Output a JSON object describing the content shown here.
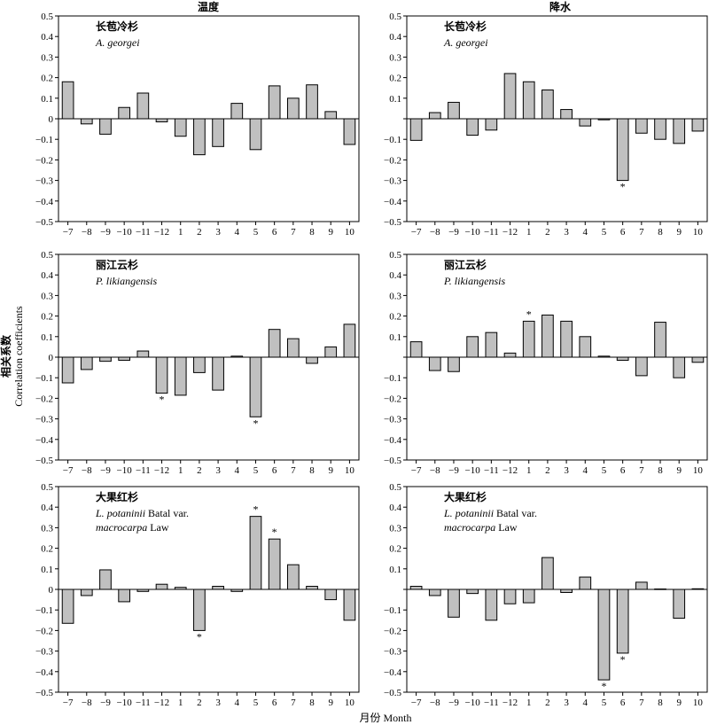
{
  "columns": [
    "温度",
    "降水"
  ],
  "axis": {
    "xlabel": "月份 Month",
    "ylabel_cn": "相关系数",
    "ylabel_en": "Correlation coefficients"
  },
  "chart_data": [
    {
      "type": "bar",
      "row": 0,
      "col": 0,
      "species_cn": "长苞冷杉",
      "species_lat": [
        "A. georgei"
      ],
      "categories": [
        "−7",
        "−8",
        "−9",
        "−10",
        "−11",
        "−12",
        "1",
        "2",
        "3",
        "4",
        "5",
        "6",
        "7",
        "8",
        "9",
        "10"
      ],
      "values": [
        0.18,
        -0.025,
        -0.075,
        0.055,
        0.125,
        -0.015,
        -0.085,
        -0.175,
        -0.135,
        0.075,
        -0.15,
        0.16,
        0.1,
        0.165,
        0.035,
        -0.125
      ],
      "significant": [],
      "ylim": [
        -0.5,
        0.5
      ],
      "yticks": [
        "−0.5",
        "−0.4",
        "−0.3",
        "−0.2",
        "−0.1",
        "0",
        "0.1",
        "0.2",
        "0.3",
        "0.4",
        "0.5"
      ]
    },
    {
      "type": "bar",
      "row": 0,
      "col": 1,
      "species_cn": "长苞冷杉",
      "species_lat": [
        "A. georgei"
      ],
      "categories": [
        "−7",
        "−8",
        "−9",
        "−10",
        "−11",
        "−12",
        "1",
        "2",
        "3",
        "4",
        "5",
        "6",
        "7",
        "8",
        "9",
        "10"
      ],
      "values": [
        -0.105,
        0.03,
        0.08,
        -0.08,
        -0.055,
        0.22,
        0.18,
        0.14,
        0.045,
        -0.035,
        -0.005,
        -0.3,
        -0.07,
        -0.1,
        -0.12,
        -0.06
      ],
      "significant": [
        11
      ],
      "ylim": [
        -0.5,
        0.5
      ],
      "yticks": [
        "−0.5",
        "−0.4",
        "−0.3",
        "−0.2",
        "−0.1",
        "",
        "0.1",
        "0.2",
        "0.3",
        "0.4",
        "0.5"
      ]
    },
    {
      "type": "bar",
      "row": 1,
      "col": 0,
      "species_cn": "丽江云杉",
      "species_lat": [
        "P. likiangensis"
      ],
      "categories": [
        "−7",
        "−8",
        "−9",
        "−10",
        "−11",
        "−12",
        "1",
        "2",
        "3",
        "4",
        "5",
        "6",
        "7",
        "8",
        "9",
        "10"
      ],
      "values": [
        -0.125,
        -0.06,
        -0.02,
        -0.015,
        0.03,
        -0.175,
        -0.185,
        -0.075,
        -0.16,
        0.005,
        -0.29,
        0.135,
        0.09,
        -0.03,
        0.05,
        0.16
      ],
      "significant": [
        5,
        10
      ],
      "ylim": [
        -0.5,
        0.5
      ],
      "yticks": [
        "−0.5",
        "−0.4",
        "−0.3",
        "−0.2",
        "−0.1",
        "0",
        "0.1",
        "0.2",
        "0.3",
        "0.4",
        "0.5"
      ]
    },
    {
      "type": "bar",
      "row": 1,
      "col": 1,
      "species_cn": "丽江云杉",
      "species_lat": [
        "P. likiangensis"
      ],
      "categories": [
        "−7",
        "−8",
        "−9",
        "−10",
        "−11",
        "−12",
        "1",
        "2",
        "3",
        "4",
        "5",
        "6",
        "7",
        "8",
        "9",
        "10"
      ],
      "values": [
        0.075,
        -0.065,
        -0.07,
        0.1,
        0.12,
        0.02,
        0.175,
        0.205,
        0.175,
        0.1,
        0.005,
        -0.015,
        -0.09,
        0.17,
        -0.1,
        -0.025
      ],
      "significant": [
        6
      ],
      "ylim": [
        -0.5,
        0.5
      ],
      "yticks": [
        "−0.5",
        "−0.4",
        "−0.3",
        "−0.2",
        "−0.1",
        "",
        "0.1",
        "0.2",
        "0.3",
        "0.4",
        "0.5"
      ]
    },
    {
      "type": "bar",
      "row": 2,
      "col": 0,
      "species_cn": "大果红杉",
      "species_lat": [
        "L. potaninii Batal var.",
        "macrocarpa Law"
      ],
      "categories": [
        "−7",
        "−8",
        "−9",
        "−10",
        "−11",
        "−12",
        "1",
        "2",
        "3",
        "4",
        "5",
        "6",
        "7",
        "8",
        "9",
        "10"
      ],
      "values": [
        -0.165,
        -0.03,
        0.095,
        -0.06,
        -0.01,
        0.025,
        0.01,
        -0.2,
        0.015,
        -0.01,
        0.355,
        0.245,
        0.12,
        0.015,
        -0.05,
        -0.15
      ],
      "significant": [
        7,
        10,
        11
      ],
      "ylim": [
        -0.5,
        0.5
      ],
      "yticks": [
        "−0.5",
        "−0.4",
        "−0.3",
        "−0.2",
        "−0.1",
        "0",
        "0.1",
        "0.2",
        "0.3",
        "0.4",
        "0.5"
      ]
    },
    {
      "type": "bar",
      "row": 2,
      "col": 1,
      "species_cn": "大果红杉",
      "species_lat": [
        "L. potaninii Batal var.",
        "macrocarpa Law"
      ],
      "categories": [
        "−7",
        "−8",
        "−9",
        "−10",
        "−11",
        "−12",
        "1",
        "2",
        "3",
        "4",
        "5",
        "6",
        "7",
        "8",
        "9",
        "10"
      ],
      "values": [
        0.015,
        -0.03,
        -0.135,
        -0.02,
        -0.15,
        -0.07,
        -0.065,
        0.155,
        -0.015,
        0.06,
        -0.44,
        -0.31,
        0.035,
        0.002,
        -0.14,
        0.003
      ],
      "significant": [
        10,
        11
      ],
      "ylim": [
        -0.5,
        0.5
      ],
      "yticks": [
        "−0.5",
        "−0.4",
        "−0.3",
        "−0.2",
        "−0.1",
        "",
        "0.1",
        "0.2",
        "0.3",
        "0.4",
        "0.5"
      ]
    }
  ]
}
